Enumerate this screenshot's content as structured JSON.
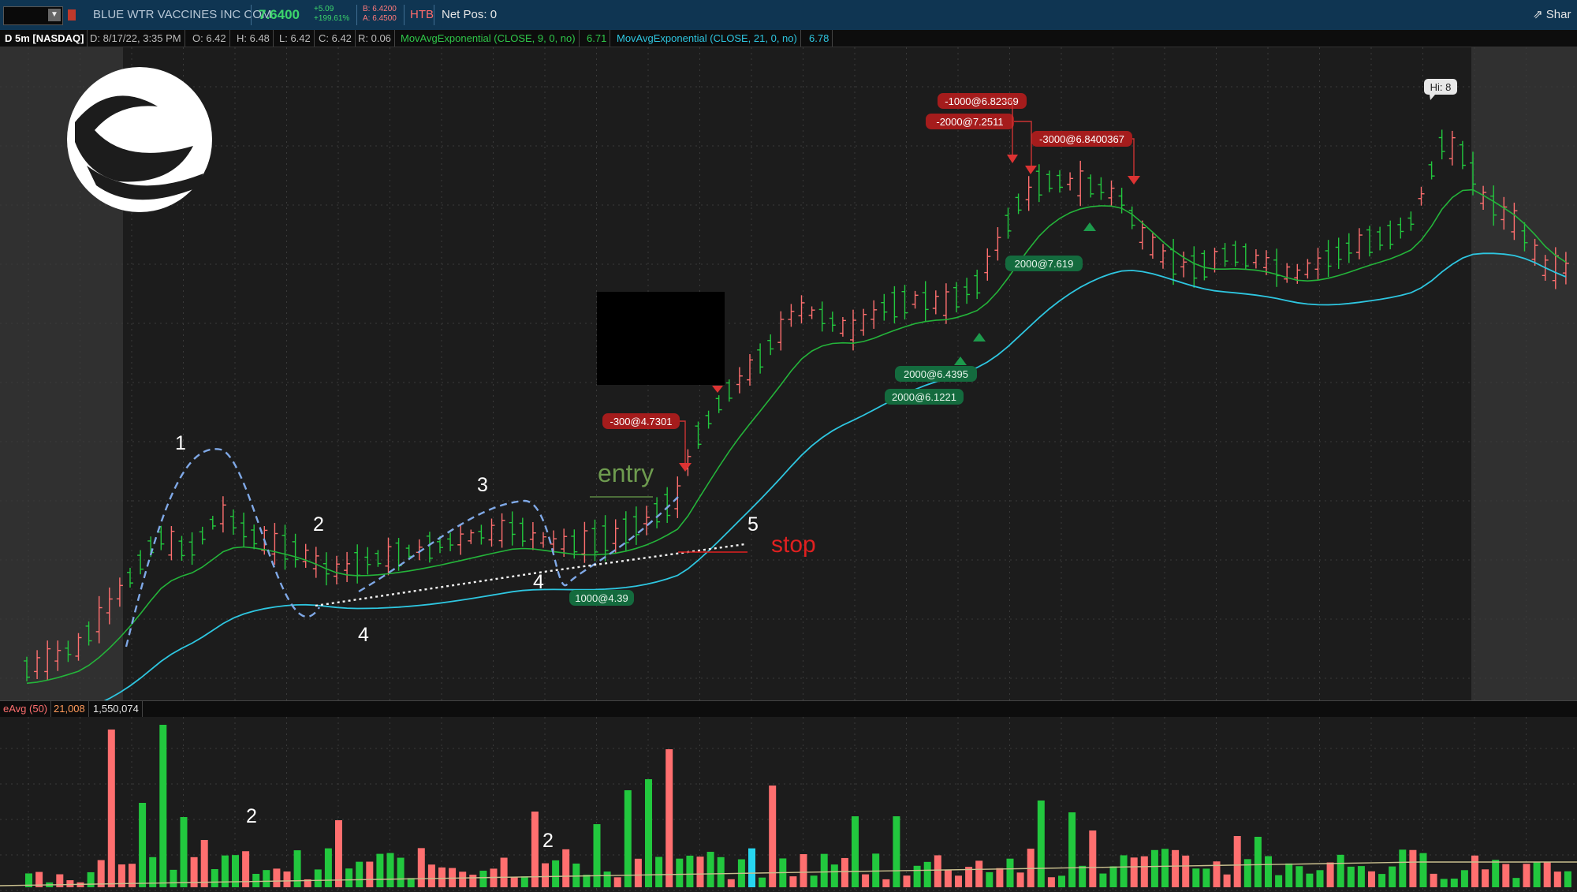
{
  "header": {
    "company": "BLUE WTR VACCINES INC COM",
    "last": "7.6400",
    "change": "+5.09",
    "change_pct": "+199.61%",
    "bid": "B: 6.4200",
    "ask": "A: 6.4500",
    "htb": "HTB",
    "net_pos": "Net Pos: 0",
    "share": "Shar"
  },
  "info": {
    "symbol_tf": "D 5m [NASDAQ]",
    "date": "D: 8/17/22, 3:35 PM",
    "open": "O: 6.42",
    "high": "H: 6.48",
    "low": "L: 6.42",
    "close": "C: 6.42",
    "range": "R: 0.06",
    "ema9_label": "MovAvgExponential (CLOSE, 9, 0, no)",
    "ema9_value": "6.71",
    "ema21_label": "MovAvgExponential (CLOSE, 21, 0, no)",
    "ema21_value": "6.78"
  },
  "volume_header": {
    "avg_label": "eAvg (50)",
    "avg_value": "21,008",
    "volume": "1,550,074"
  },
  "colors": {
    "up": "#22c83e",
    "down": "#ff6f6f",
    "ema9": "#24b43a",
    "ema21": "#2ec6e0",
    "sell_tag": "#a51c1c",
    "buy_tag": "#146b3e"
  },
  "annotations": {
    "n1": "1",
    "n2a": "2",
    "n3": "3",
    "n4a": "4",
    "n4b": "4",
    "n5": "5",
    "entry": "entry",
    "stop": "stop",
    "vol2a": "2",
    "vol2b": "2",
    "hi": "Hi: 8"
  },
  "orders": {
    "sells": [
      "-1000@6.82369",
      "-2000@7.2511",
      "-3000@6.8400367",
      "-300@4.7301"
    ],
    "buys": [
      "2000@7.619",
      "2000@6.4395",
      "2000@6.1221",
      "1000@4.39"
    ]
  }
}
